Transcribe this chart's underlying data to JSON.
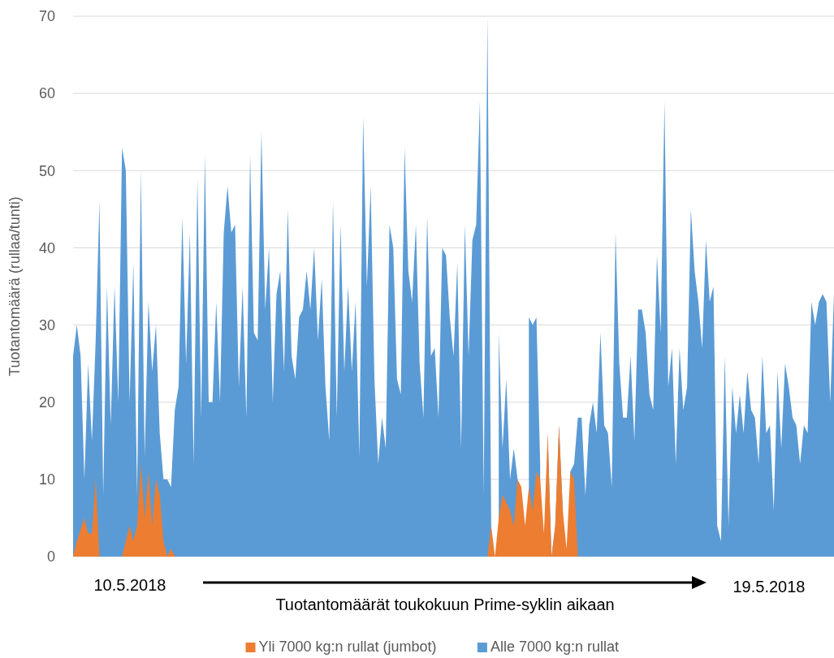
{
  "chart_data": {
    "type": "area",
    "xlabel": "Tuotantomäärät toukokuun Prime-syklin aikaan",
    "ylabel": "Tuotantomäärä (rullaa/tunti)",
    "annotations": [
      "10.5.2018",
      "19.5.2018"
    ],
    "categories": [
      null,
      null,
      null,
      null,
      null,
      null,
      null,
      null,
      null,
      null,
      null,
      null,
      null,
      null,
      null,
      null,
      null,
      null,
      null,
      null,
      null,
      null,
      null,
      null,
      null,
      null,
      null,
      null,
      null,
      null,
      null,
      null,
      null,
      null,
      null,
      null,
      null,
      null,
      null,
      null,
      null,
      null,
      null,
      null,
      null,
      null,
      null,
      null,
      null,
      null,
      null,
      null,
      null,
      null,
      null,
      null,
      null,
      null,
      null,
      null,
      null,
      null,
      null,
      null,
      null,
      null,
      null,
      null,
      null,
      null,
      null,
      null,
      null,
      null,
      null,
      null,
      null,
      null,
      null,
      null,
      null,
      null,
      null,
      null,
      null,
      null,
      null,
      null,
      null,
      null,
      null,
      null,
      null,
      null,
      null,
      null,
      null,
      null,
      null,
      null,
      null,
      null,
      null,
      null,
      null,
      null,
      null,
      null,
      null,
      null,
      null,
      null,
      null,
      null,
      null,
      null,
      null,
      null,
      null,
      null,
      null,
      null,
      null,
      null,
      null,
      null,
      null,
      null,
      null,
      null,
      null,
      null,
      null,
      null,
      null,
      null,
      null,
      null,
      null,
      null,
      null,
      null,
      null,
      null,
      null,
      null,
      null,
      null,
      null,
      null,
      null,
      null,
      null,
      null,
      null,
      null,
      null,
      null,
      null,
      null,
      null,
      null,
      null,
      null,
      null,
      null,
      null,
      null,
      null,
      null,
      null,
      null,
      null,
      null,
      null,
      null,
      null,
      null,
      null,
      null,
      null,
      null,
      null,
      null,
      null,
      null,
      null,
      null,
      null,
      null,
      null,
      null,
      null,
      null,
      null,
      null,
      null,
      null,
      null,
      null,
      null,
      null,
      null
    ],
    "series": [
      {
        "name": "Yli 7000 kg:n rullat (jumbot)",
        "color": "#ed7d31",
        "values": [
          0,
          2,
          3.5,
          5,
          3,
          3,
          10,
          0,
          0,
          0,
          0,
          0,
          0,
          0,
          2,
          4,
          2,
          4,
          12,
          5,
          11,
          4,
          10,
          8,
          2,
          0,
          1,
          0,
          0,
          0,
          0,
          0,
          0,
          0,
          0,
          0,
          0,
          0,
          0,
          0,
          0,
          0,
          0,
          0,
          0,
          0,
          0,
          0,
          0,
          0,
          0,
          0,
          0,
          0,
          0,
          0,
          0,
          0,
          0,
          0,
          0,
          0,
          0,
          0,
          0,
          0,
          0,
          0,
          0,
          0,
          0,
          0,
          0,
          0,
          0,
          0,
          0,
          0,
          0,
          0,
          0,
          0,
          0,
          0,
          0,
          0,
          0,
          0,
          0,
          0,
          0,
          0,
          0,
          0,
          0,
          0,
          0,
          0,
          0,
          0,
          0,
          0,
          0,
          0,
          0,
          0,
          0,
          0,
          0,
          0,
          0,
          4,
          0,
          5,
          8,
          7,
          6,
          4,
          10,
          9,
          4,
          9,
          6,
          11,
          10,
          3,
          16,
          0,
          4,
          17,
          6,
          1,
          11,
          10,
          0,
          0,
          0,
          0,
          0,
          0,
          0,
          0,
          0,
          0,
          0,
          0,
          0,
          0,
          0,
          0,
          0,
          0,
          0,
          0,
          0,
          0,
          0,
          0,
          0,
          0,
          0,
          0,
          0,
          0,
          0,
          0,
          0,
          0,
          0,
          0,
          0,
          0,
          0,
          0,
          0,
          0,
          0,
          0,
          0,
          0,
          0,
          0,
          0,
          0,
          0,
          0,
          0,
          0,
          0,
          0,
          0,
          0,
          0,
          0,
          0,
          0,
          0,
          0,
          0,
          0,
          0,
          0,
          0
        ]
      },
      {
        "name": "Alle 7000 kg:n rullat",
        "color": "#5b9bd5",
        "values": [
          26,
          30,
          26,
          10,
          25,
          15,
          28,
          46,
          8,
          35,
          17,
          35,
          20,
          53,
          50,
          20,
          38,
          8,
          50,
          13,
          33,
          24,
          30,
          16,
          10,
          10,
          9,
          19,
          22,
          44,
          25,
          42,
          12,
          49,
          18,
          52,
          20,
          20,
          33,
          20,
          42,
          48,
          42,
          43,
          22,
          35,
          18,
          52,
          29,
          28,
          55,
          32,
          40,
          20,
          34,
          37,
          24,
          45,
          26,
          23,
          31,
          32,
          37,
          32,
          40,
          28,
          36,
          22,
          15,
          46,
          18,
          43,
          24,
          35,
          24,
          33,
          13,
          57,
          35,
          48,
          23,
          12,
          18,
          14,
          43,
          40,
          23,
          21,
          53,
          37,
          33,
          43,
          25,
          18,
          44,
          26,
          27,
          18,
          40,
          39,
          31,
          26,
          38,
          14,
          43,
          26,
          41,
          43,
          59,
          8,
          70,
          4,
          null,
          29,
          14,
          23,
          10,
          14,
          10,
          7,
          null,
          31,
          30,
          31,
          12,
          null,
          16,
          0,
          4,
          17,
          6,
          null,
          11,
          12,
          18,
          18,
          8,
          17,
          20,
          16,
          29,
          17,
          16,
          9,
          42,
          25,
          18,
          18,
          26,
          15,
          32,
          32,
          29,
          21,
          19,
          39,
          29,
          59,
          22,
          27,
          12,
          27,
          19,
          22,
          45,
          37,
          33,
          27,
          41,
          33,
          35,
          4,
          2,
          26,
          4,
          22,
          16,
          21,
          16,
          24,
          19,
          18,
          12,
          26,
          16,
          17,
          6,
          24,
          14,
          25,
          22,
          18,
          17,
          12,
          17,
          16,
          33,
          30,
          33,
          34,
          33,
          20,
          34
        ]
      }
    ],
    "ylim": [
      0,
      70
    ],
    "yticks": [
      0,
      10,
      20,
      30,
      40,
      50,
      60,
      70
    ],
    "grid": "y",
    "legend": "bottom",
    "tick_labels": "y"
  }
}
